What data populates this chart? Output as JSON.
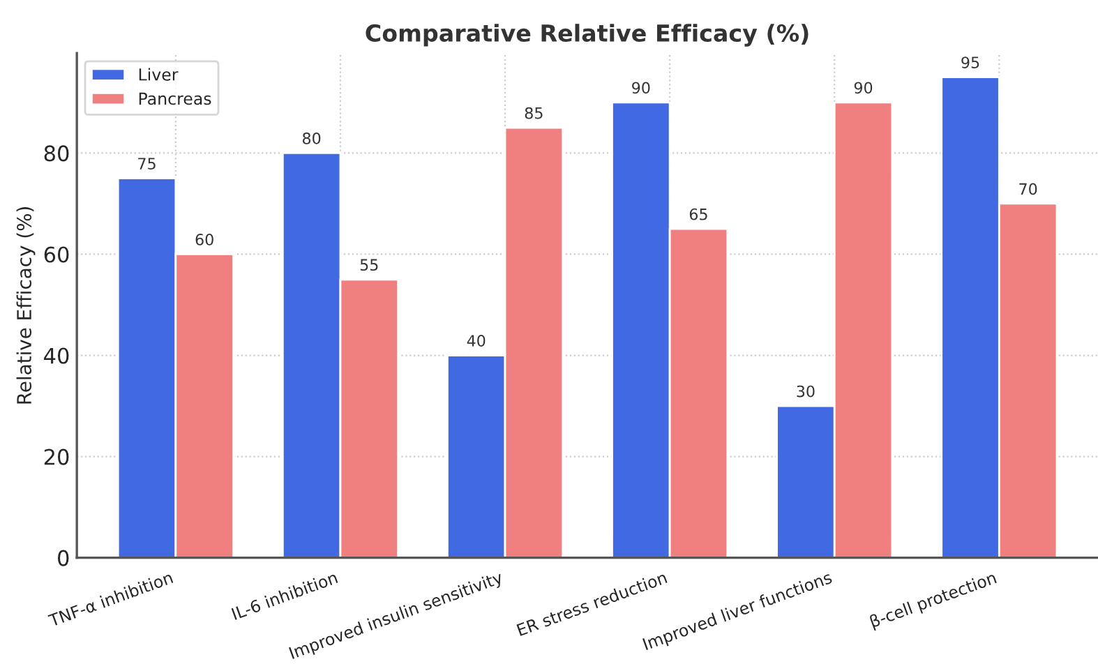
{
  "chart_data": {
    "type": "bar",
    "title": "Comparative Relative Efficacy (%)",
    "ylabel": "Relative Efficacy (%)",
    "categories": [
      "TNF-α inhibition",
      "IL-6 inhibition",
      "Improved insulin sensitivity",
      "ER stress reduction",
      "Improved liver functions",
      "β-cell protection"
    ],
    "series": [
      {
        "name": "Liver",
        "color": "#4169e1",
        "values": [
          75,
          80,
          40,
          90,
          30,
          95
        ]
      },
      {
        "name": "Pancreas",
        "color": "#f08080",
        "values": [
          60,
          55,
          85,
          65,
          90,
          70
        ]
      }
    ],
    "ylim": [
      0,
      99.75
    ],
    "yticks": [
      0,
      20,
      40,
      60,
      80
    ],
    "grid": true,
    "legend": "top left",
    "data_labels": true
  }
}
